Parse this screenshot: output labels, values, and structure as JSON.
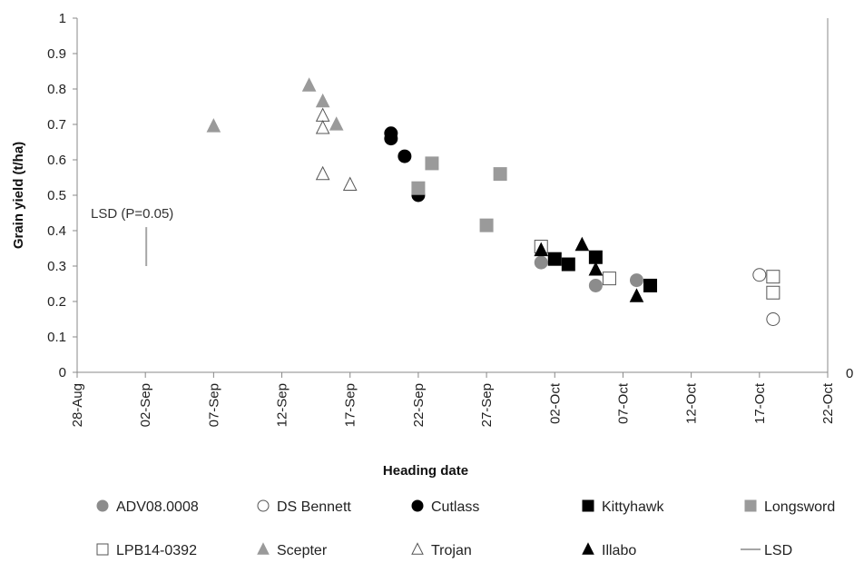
{
  "chart_data": {
    "type": "scatter",
    "title": "",
    "xlabel": "Heading date",
    "ylabel": "Grain yield (t/ha)",
    "secondary_axis_label": "0",
    "xlim": [
      "2017-08-28",
      "2017-10-22"
    ],
    "ylim": [
      0,
      1
    ],
    "y_ticks": [
      "0",
      "0.1",
      "0.2",
      "0.3",
      "0.4",
      "0.5",
      "0.6",
      "0.7",
      "0.8",
      "0.9",
      "1"
    ],
    "x_ticks": [
      "28-Aug",
      "02-Sep",
      "07-Sep",
      "12-Sep",
      "17-Sep",
      "22-Sep",
      "27-Sep",
      "02-Oct",
      "07-Oct",
      "12-Oct",
      "17-Oct",
      "22-Oct"
    ],
    "grid": false,
    "legend_position": "bottom",
    "annotation": {
      "text": "LSD (P=0.05)",
      "x": "2017-09-02",
      "y_range": [
        0.3,
        0.41
      ]
    },
    "series": [
      {
        "name": "ADV08.0008",
        "marker": "circle",
        "color": "#8c8c8c",
        "points": [
          {
            "x": "2017-10-01",
            "y": 0.31
          },
          {
            "x": "2017-10-05",
            "y": 0.245
          },
          {
            "x": "2017-10-08",
            "y": 0.26
          }
        ]
      },
      {
        "name": "DS Bennett",
        "marker": "circle",
        "color": "#ffffff",
        "points": [
          {
            "x": "2017-10-17",
            "y": 0.275
          },
          {
            "x": "2017-10-18",
            "y": 0.15
          }
        ]
      },
      {
        "name": "Cutlass",
        "marker": "circle",
        "color": "#000000",
        "points": [
          {
            "x": "2017-09-20",
            "y": 0.675
          },
          {
            "x": "2017-09-20",
            "y": 0.66
          },
          {
            "x": "2017-09-21",
            "y": 0.61
          },
          {
            "x": "2017-09-22",
            "y": 0.5
          }
        ]
      },
      {
        "name": "Kittyhawk",
        "marker": "square",
        "color": "#000000",
        "points": [
          {
            "x": "2017-10-02",
            "y": 0.32
          },
          {
            "x": "2017-10-03",
            "y": 0.305
          },
          {
            "x": "2017-10-05",
            "y": 0.325
          },
          {
            "x": "2017-10-09",
            "y": 0.245
          }
        ]
      },
      {
        "name": "Longsword",
        "marker": "square",
        "color": "#9a9a9a",
        "points": [
          {
            "x": "2017-09-22",
            "y": 0.52
          },
          {
            "x": "2017-09-23",
            "y": 0.59
          },
          {
            "x": "2017-09-27",
            "y": 0.415
          },
          {
            "x": "2017-09-28",
            "y": 0.56
          }
        ]
      },
      {
        "name": "LPB14-0392",
        "marker": "square",
        "color": "#ffffff",
        "points": [
          {
            "x": "2017-10-01",
            "y": 0.355
          },
          {
            "x": "2017-10-06",
            "y": 0.265
          },
          {
            "x": "2017-10-18",
            "y": 0.27
          },
          {
            "x": "2017-10-18",
            "y": 0.225
          }
        ]
      },
      {
        "name": "Scepter",
        "marker": "triangle",
        "color": "#9a9a9a",
        "points": [
          {
            "x": "2017-09-07",
            "y": 0.695
          },
          {
            "x": "2017-09-14",
            "y": 0.81
          },
          {
            "x": "2017-09-15",
            "y": 0.765
          },
          {
            "x": "2017-09-16",
            "y": 0.7
          }
        ]
      },
      {
        "name": "Trojan",
        "marker": "triangle",
        "color": "#ffffff",
        "points": [
          {
            "x": "2017-09-15",
            "y": 0.725
          },
          {
            "x": "2017-09-15",
            "y": 0.69
          },
          {
            "x": "2017-09-15",
            "y": 0.56
          },
          {
            "x": "2017-09-17",
            "y": 0.53
          }
        ]
      },
      {
        "name": "Illabo",
        "marker": "triangle",
        "color": "#000000",
        "points": [
          {
            "x": "2017-10-01",
            "y": 0.345
          },
          {
            "x": "2017-10-04",
            "y": 0.36
          },
          {
            "x": "2017-10-05",
            "y": 0.29
          },
          {
            "x": "2017-10-08",
            "y": 0.215
          }
        ]
      },
      {
        "name": "LSD",
        "marker": "line",
        "color": "#a6a6a6",
        "points": []
      }
    ]
  }
}
